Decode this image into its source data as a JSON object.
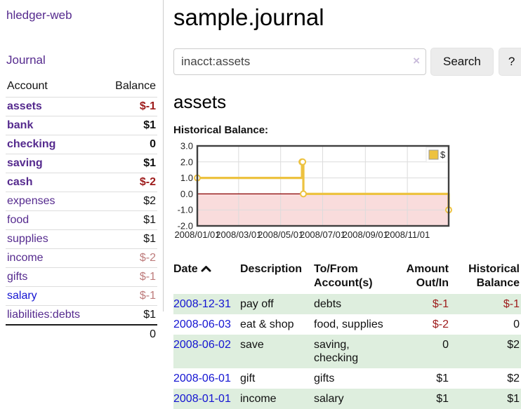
{
  "colors": {
    "accent_purple": "#552a8e",
    "link_blue": "#1414d2",
    "negative_strong": "#9d1b1b",
    "negative_soft": "#bd7b7b",
    "row_highlight_green": "#deeede",
    "series_gold": "#edc240",
    "zero_line_red": "#8b0000",
    "negative_region_pink": "#f9dcdc"
  },
  "sidebar": {
    "app_title": "hledger-web",
    "journal_label": "Journal",
    "accounts_table": {
      "headers": {
        "account": "Account",
        "balance": "Balance"
      },
      "rows": [
        {
          "account": "assets",
          "balance": "$-1",
          "depth": 1,
          "in_filter": true,
          "balance_class": "neg-strong",
          "link_color": "purple"
        },
        {
          "account": "bank",
          "balance": "$1",
          "depth": 2,
          "in_filter": true,
          "balance_class": "",
          "link_color": "purple"
        },
        {
          "account": "checking",
          "balance": "0",
          "depth": 3,
          "in_filter": true,
          "balance_class": "",
          "link_color": "purple"
        },
        {
          "account": "saving",
          "balance": "$1",
          "depth": 3,
          "in_filter": true,
          "balance_class": "",
          "link_color": "purple"
        },
        {
          "account": "cash",
          "balance": "$-2",
          "depth": 2,
          "in_filter": true,
          "balance_class": "neg-strong",
          "link_color": "purple"
        },
        {
          "account": "expenses",
          "balance": "$2",
          "depth": 1,
          "in_filter": false,
          "balance_class": "",
          "link_color": "purple"
        },
        {
          "account": "food",
          "balance": "$1",
          "depth": 2,
          "in_filter": false,
          "balance_class": "",
          "link_color": "purple"
        },
        {
          "account": "supplies",
          "balance": "$1",
          "depth": 2,
          "in_filter": false,
          "balance_class": "",
          "link_color": "purple"
        },
        {
          "account": "income",
          "balance": "$-2",
          "depth": 1,
          "in_filter": false,
          "balance_class": "neg-soft",
          "link_color": "purple"
        },
        {
          "account": "gifts",
          "balance": "$-1",
          "depth": 2,
          "in_filter": false,
          "balance_class": "neg-soft",
          "link_color": "purple"
        },
        {
          "account": "salary",
          "balance": "$-1",
          "depth": 2,
          "in_filter": false,
          "balance_class": "neg-soft",
          "link_color": "blue"
        },
        {
          "account": "liabilities:debts",
          "balance": "$1",
          "depth": 1,
          "in_filter": false,
          "balance_class": "",
          "link_color": "purple"
        }
      ],
      "total": "0"
    }
  },
  "header": {
    "title": "sample.journal"
  },
  "search": {
    "value": "inacct:assets",
    "clear_icon": "×",
    "search_label": "Search",
    "help_label": "?"
  },
  "main": {
    "account_heading": "assets",
    "chart_label": "Historical Balance:"
  },
  "chart_data": {
    "type": "line",
    "step": true,
    "title": "Historical Balance:",
    "series": [
      {
        "name": "$",
        "color": "#edc240",
        "points": [
          [
            "2008-01-01",
            1
          ],
          [
            "2008-06-01",
            2
          ],
          [
            "2008-06-02",
            2
          ],
          [
            "2008-06-03",
            0
          ],
          [
            "2008-12-31",
            -1
          ]
        ]
      }
    ],
    "x_domain": [
      "2008-01-01",
      "2008-12-31"
    ],
    "x_ticks": [
      {
        "date": "2008-01-01",
        "label": "2008/01/01"
      },
      {
        "date": "2008-03-01",
        "label": "2008/03/01"
      },
      {
        "date": "2008-05-01",
        "label": "2008/05/01"
      },
      {
        "date": "2008-07-01",
        "label": "2008/07/01"
      },
      {
        "date": "2008-09-01",
        "label": "2008/09/01"
      },
      {
        "date": "2008-11-01",
        "label": "2008/11/01"
      }
    ],
    "y_ticks": [
      3.0,
      2.0,
      1.0,
      0.0,
      -1.0,
      -2.0
    ],
    "y_tick_labels": [
      "3.0",
      "2.0",
      "1.0",
      "0.0",
      "-1.0",
      "-2.0"
    ],
    "ylim": [
      -2,
      3
    ],
    "grid": true,
    "negative_region_color": "#f9dcdc",
    "zero_line_color": "#8b0000",
    "legend": {
      "label": "$",
      "position": "top-right"
    }
  },
  "register": {
    "headers": [
      "Date",
      "Description",
      "To/From Account(s)",
      "Amount Out/In",
      "Historical Balance"
    ],
    "sort": {
      "column": "Date",
      "direction": "ascending"
    },
    "rows": [
      {
        "date": "2008-12-31",
        "description": "pay off",
        "accounts": "debts",
        "amount": "$-1",
        "balance": "$-1",
        "amount_class": "neg",
        "balance_class": "neg",
        "highlighted": true
      },
      {
        "date": "2008-06-03",
        "description": "eat & shop",
        "accounts": "food, supplies",
        "amount": "$-2",
        "balance": "0",
        "amount_class": "neg",
        "balance_class": "",
        "highlighted": false
      },
      {
        "date": "2008-06-02",
        "description": "save",
        "accounts": "saving, checking",
        "amount": "0",
        "balance": "$2",
        "amount_class": "",
        "balance_class": "",
        "highlighted": true
      },
      {
        "date": "2008-06-01",
        "description": "gift",
        "accounts": "gifts",
        "amount": "$1",
        "balance": "$2",
        "amount_class": "",
        "balance_class": "",
        "highlighted": false
      },
      {
        "date": "2008-01-01",
        "description": "income",
        "accounts": "salary",
        "amount": "$1",
        "balance": "$1",
        "amount_class": "",
        "balance_class": "",
        "highlighted": true
      }
    ]
  }
}
